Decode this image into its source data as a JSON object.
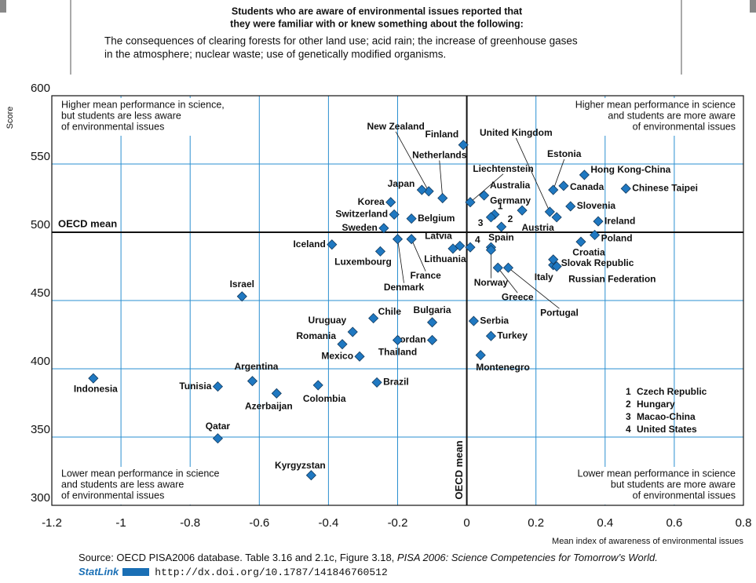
{
  "header": {
    "title_lines": [
      "Students who are aware of environmental issues reported that",
      "they were familiar with or knew something about the following:"
    ],
    "description_lines": [
      "The consequences of clearing forests for other land use; acid rain; the increase of greenhouse gases",
      "in the atmosphere; nuclear waste; use of genetically modified organisms."
    ]
  },
  "chart_data": {
    "type": "scatter",
    "x_label": "Mean index of awareness of environmental issues",
    "y_label": "Score",
    "xlim": [
      -1.2,
      0.8
    ],
    "xticks": [
      -1.2,
      -1,
      -0.8,
      -0.6,
      -0.4,
      -0.2,
      0,
      0.2,
      0.4,
      0.6,
      0.8
    ],
    "ylim": [
      300,
      600
    ],
    "yticks": [
      300,
      350,
      400,
      450,
      500,
      550,
      600
    ],
    "grid": true,
    "grid_color": "#2a8fd0",
    "marker_color": "#1f78c1",
    "mean_lines": {
      "x": 0,
      "y": 500,
      "x_label": "OECD mean",
      "y_label": "OECD mean"
    },
    "quadrants": [
      {
        "lines": [
          "Higher mean performance in science,",
          "but students are less aware",
          "of environmental issues"
        ]
      },
      {
        "lines": [
          "Higher mean performance in science",
          "and students are more aware",
          "of environmental issues"
        ]
      },
      {
        "lines": [
          "Lower mean performance in science",
          "and students are less aware",
          "of environmental issues"
        ]
      },
      {
        "lines": [
          "Lower mean performance in science",
          "but students are more aware",
          "of environmental issues"
        ]
      }
    ],
    "points": [
      {
        "label": "Finland",
        "x": -0.01,
        "y": 564,
        "label_color": "#111111"
      },
      {
        "label": "New Zealand",
        "x": -0.11,
        "y": 530,
        "label_color": "#111111"
      },
      {
        "label": "Japan",
        "x": -0.13,
        "y": 531,
        "label_color": "#111111"
      },
      {
        "label": "Netherlands",
        "x": -0.07,
        "y": 525,
        "label_color": "#111111"
      },
      {
        "label": "Korea",
        "x": -0.22,
        "y": 522,
        "label_color": "#111111"
      },
      {
        "label": "Switzerland",
        "x": -0.21,
        "y": 513,
        "label_color": "#111111"
      },
      {
        "label": "Belgium",
        "x": -0.16,
        "y": 510,
        "label_color": "#111111"
      },
      {
        "label": "Sweden",
        "x": -0.24,
        "y": 503,
        "label_color": "#111111"
      },
      {
        "label": "Iceland",
        "x": -0.39,
        "y": 491,
        "label_color": "#111111"
      },
      {
        "label": "Luxembourg",
        "x": -0.25,
        "y": 486,
        "label_color": "#111111"
      },
      {
        "label": "Denmark",
        "x": -0.2,
        "y": 495,
        "label_color": "#111111"
      },
      {
        "label": "France",
        "x": -0.16,
        "y": 495,
        "label_color": "#111111"
      },
      {
        "label": "Lithuania",
        "x": -0.04,
        "y": 488,
        "label_color": "#1a8ac8"
      },
      {
        "label": "Latvia",
        "x": -0.02,
        "y": 490,
        "label_color": "#1a8ac8"
      },
      {
        "label": "4",
        "x": 0.01,
        "y": 489,
        "label_color": "#111111"
      },
      {
        "label": "Liechtenstein",
        "x": 0.01,
        "y": 522,
        "label_color": "#1a8ac8"
      },
      {
        "label": "Australia",
        "x": 0.05,
        "y": 527,
        "label_color": "#111111"
      },
      {
        "label": "1",
        "x": 0.08,
        "y": 513,
        "label_color": "#111111"
      },
      {
        "label": "3",
        "x": 0.07,
        "y": 511,
        "label_color": "#1a8ac8"
      },
      {
        "label": "2",
        "x": 0.1,
        "y": 504,
        "label_color": "#111111"
      },
      {
        "label": "Germany",
        "x": 0.16,
        "y": 516,
        "label_color": "#111111"
      },
      {
        "label": "Spain",
        "x": 0.07,
        "y": 489,
        "label_color": "#111111"
      },
      {
        "label": "Norway",
        "x": 0.07,
        "y": 487,
        "label_color": "#111111"
      },
      {
        "label": "Greece",
        "x": 0.09,
        "y": 474,
        "label_color": "#111111"
      },
      {
        "label": "Portugal",
        "x": 0.12,
        "y": 474,
        "label_color": "#111111"
      },
      {
        "label": "Italy",
        "x": 0.25,
        "y": 476,
        "label_color": "#111111"
      },
      {
        "label": "Slovak Republic",
        "x": 0.25,
        "y": 480,
        "label_color": "#111111"
      },
      {
        "label": "Russian Federation",
        "x": 0.26,
        "y": 475,
        "label_color": "#1a8ac8"
      },
      {
        "label": "Croatia",
        "x": 0.33,
        "y": 493,
        "label_color": "#1a8ac8"
      },
      {
        "label": "Poland",
        "x": 0.37,
        "y": 498,
        "label_color": "#111111"
      },
      {
        "label": "Ireland",
        "x": 0.38,
        "y": 508,
        "label_color": "#111111"
      },
      {
        "label": "Austria",
        "x": 0.26,
        "y": 511,
        "label_color": "#111111"
      },
      {
        "label": "United Kingdom",
        "x": 0.24,
        "y": 515,
        "label_color": "#111111"
      },
      {
        "label": "Estonia",
        "x": 0.25,
        "y": 531,
        "label_color": "#1a8ac8"
      },
      {
        "label": "Canada",
        "x": 0.28,
        "y": 534,
        "label_color": "#111111"
      },
      {
        "label": "Slovenia",
        "x": 0.3,
        "y": 519,
        "label_color": "#1a8ac8"
      },
      {
        "label": "Hong Kong-China",
        "x": 0.34,
        "y": 542,
        "label_color": "#1a8ac8"
      },
      {
        "label": "Chinese Taipei",
        "x": 0.46,
        "y": 532,
        "label_color": "#1a8ac8"
      },
      {
        "label": "Israel",
        "x": -0.65,
        "y": 453,
        "label_color": "#1a8ac8"
      },
      {
        "label": "Chile",
        "x": -0.27,
        "y": 437,
        "label_color": "#1a8ac8"
      },
      {
        "label": "Bulgaria",
        "x": -0.1,
        "y": 434,
        "label_color": "#1a8ac8"
      },
      {
        "label": "Serbia",
        "x": 0.02,
        "y": 435,
        "label_color": "#1a8ac8"
      },
      {
        "label": "Uruguay",
        "x": -0.33,
        "y": 427,
        "label_color": "#1a8ac8"
      },
      {
        "label": "Romania",
        "x": -0.36,
        "y": 418,
        "label_color": "#1a8ac8"
      },
      {
        "label": "Jordan",
        "x": -0.1,
        "y": 421,
        "label_color": "#1a8ac8"
      },
      {
        "label": "Thailand",
        "x": -0.2,
        "y": 421,
        "label_color": "#1a8ac8"
      },
      {
        "label": "Turkey",
        "x": 0.07,
        "y": 424,
        "label_color": "#111111"
      },
      {
        "label": "Mexico",
        "x": -0.31,
        "y": 409,
        "label_color": "#111111"
      },
      {
        "label": "Montenegro",
        "x": 0.04,
        "y": 410,
        "label_color": "#1a8ac8"
      },
      {
        "label": "Argentina",
        "x": -0.62,
        "y": 391,
        "label_color": "#1a8ac8"
      },
      {
        "label": "Indonesia",
        "x": -1.08,
        "y": 393,
        "label_color": "#1a8ac8"
      },
      {
        "label": "Tunisia",
        "x": -0.72,
        "y": 387,
        "label_color": "#1a8ac8"
      },
      {
        "label": "Azerbaijan",
        "x": -0.55,
        "y": 382,
        "label_color": "#1a8ac8"
      },
      {
        "label": "Colombia",
        "x": -0.43,
        "y": 388,
        "label_color": "#1a8ac8"
      },
      {
        "label": "Brazil",
        "x": -0.26,
        "y": 390,
        "label_color": "#1a8ac8"
      },
      {
        "label": "Qatar",
        "x": -0.72,
        "y": 349,
        "label_color": "#1a8ac8"
      },
      {
        "label": "Kyrgyzstan",
        "x": -0.45,
        "y": 322,
        "label_color": "#1a8ac8"
      }
    ],
    "key": [
      {
        "number": "1",
        "label": "Czech Republic",
        "color": "#111111"
      },
      {
        "number": "2",
        "label": "Hungary",
        "color": "#111111"
      },
      {
        "number": "3",
        "label": "Macao-China",
        "color": "#1a8ac8"
      },
      {
        "number": "4",
        "label": "United States",
        "color": "#111111"
      }
    ]
  },
  "source": {
    "text": "Source: OECD PISA2006 database. Table 3.16 and 2.1c, Figure 3.18, ",
    "italic": "PISA 2006: Science Competencies for Tomorrow’s World.",
    "statlink": "StatLink",
    "url": "http://dx.doi.org/10.1787/141846760512"
  }
}
